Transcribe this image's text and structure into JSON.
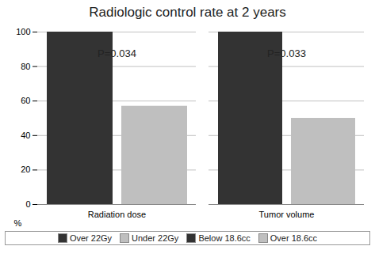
{
  "chart_data": {
    "type": "bar",
    "title": "Radiologic control rate at 2 years",
    "categories": [
      "Radiation dose",
      "Tumor volume"
    ],
    "series": [
      {
        "name": "Over 22Gy",
        "color": "#333333",
        "values": [
          100,
          null
        ]
      },
      {
        "name": "Under 22Gy",
        "color": "#bfbfbf",
        "values": [
          57,
          null
        ]
      },
      {
        "name": "Below 18.6cc",
        "color": "#333333",
        "values": [
          null,
          100
        ]
      },
      {
        "name": "Over 18.6cc",
        "color": "#bfbfbf",
        "values": [
          null,
          50
        ]
      }
    ],
    "y_label": "%",
    "annotations": [
      {
        "text": "P=0.034",
        "category": "Radiation dose"
      },
      {
        "text": "P=0.033",
        "category": "Tumor volume"
      }
    ],
    "ylim": [
      0,
      100
    ],
    "yticks": [
      0,
      20,
      40,
      60,
      80,
      100
    ],
    "grid": true,
    "legend": "bottom"
  }
}
